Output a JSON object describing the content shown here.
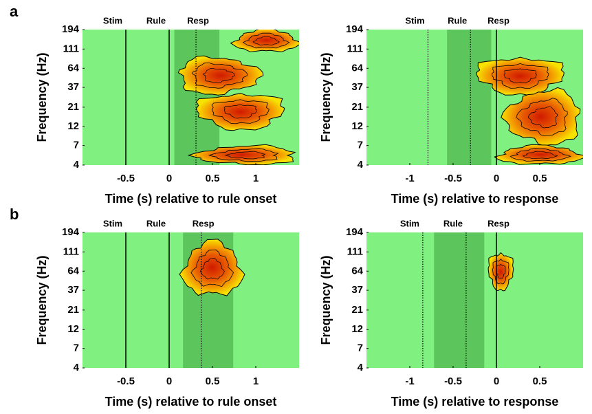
{
  "panel_labels": [
    "a",
    "b"
  ],
  "chart_data": [
    {
      "type": "heatmap",
      "x_label": "Time (s) relative to rule onset",
      "y_label": "Frequency (Hz)",
      "xlim": [
        -1,
        1.5
      ],
      "xticks": [
        -0.5,
        0,
        0.5,
        1
      ],
      "ylim": [
        4,
        194
      ],
      "yticks": [
        4,
        7,
        12,
        21,
        37,
        64,
        111,
        194
      ],
      "log_y": true,
      "background": "#80f080",
      "shade_color": "#5cc65c",
      "shaded": [
        0.06,
        0.58
      ],
      "events": [
        {
          "label": "Stim",
          "x": -0.5,
          "line": "solid"
        },
        {
          "label": "Rule",
          "x": 0,
          "line": "solid"
        },
        {
          "label": "Resp",
          "x": 0.31,
          "line": "dotted"
        }
      ],
      "clusters": [
        {
          "x": [
            0.74,
            1.5
          ],
          "y": [
            100,
            194
          ]
        },
        {
          "x": [
            0.08,
            1.05
          ],
          "y": [
            30,
            90
          ]
        },
        {
          "x": [
            0.3,
            1.35
          ],
          "y": [
            11,
            32
          ]
        },
        {
          "x": [
            0.3,
            1.5
          ],
          "y": [
            4,
            7
          ]
        }
      ]
    },
    {
      "type": "heatmap",
      "x_label": "Time (s) relative to response",
      "y_label": "Frequency (Hz)",
      "xlim": [
        -1.5,
        1
      ],
      "xticks": [
        -1,
        -0.5,
        0,
        0.5
      ],
      "ylim": [
        4,
        194
      ],
      "yticks": [
        4,
        7,
        12,
        21,
        37,
        64,
        111,
        194
      ],
      "log_y": true,
      "background": "#80f080",
      "shade_color": "#5cc65c",
      "shaded": [
        -0.57,
        -0.06
      ],
      "events": [
        {
          "label": "Stim",
          "x": -0.79,
          "line": "dotted"
        },
        {
          "label": "Rule",
          "x": -0.3,
          "line": "dotted"
        },
        {
          "label": "Resp",
          "x": 0,
          "line": "solid"
        }
      ],
      "clusters": [
        {
          "x": [
            -0.25,
            0.8
          ],
          "y": [
            30,
            90
          ]
        },
        {
          "x": [
            0.1,
            1
          ],
          "y": [
            7,
            35
          ]
        },
        {
          "x": [
            0,
            1
          ],
          "y": [
            4,
            7
          ]
        }
      ]
    },
    {
      "type": "heatmap",
      "x_label": "Time (s) relative to rule onset",
      "y_label": "Frequency (Hz)",
      "xlim": [
        -1,
        1.5
      ],
      "xticks": [
        -0.5,
        0,
        0.5,
        1
      ],
      "ylim": [
        4,
        194
      ],
      "yticks": [
        4,
        7,
        12,
        21,
        37,
        64,
        111,
        194
      ],
      "log_y": true,
      "background": "#80f080",
      "shade_color": "#5cc65c",
      "shaded": [
        0.16,
        0.74
      ],
      "events": [
        {
          "label": "Stim",
          "x": -0.5,
          "line": "solid"
        },
        {
          "label": "Rule",
          "x": 0,
          "line": "solid"
        },
        {
          "label": "Resp",
          "x": 0.37,
          "line": "dotted"
        }
      ],
      "clusters": [
        {
          "x": [
            0.15,
            0.85
          ],
          "y": [
            30,
            150
          ]
        }
      ]
    },
    {
      "type": "heatmap",
      "x_label": "Time (s) relative to response",
      "y_label": "Frequency (Hz)",
      "xlim": [
        -1.5,
        1
      ],
      "xticks": [
        -1,
        -0.5,
        0,
        0.5
      ],
      "ylim": [
        4,
        194
      ],
      "yticks": [
        4,
        7,
        12,
        21,
        37,
        64,
        111,
        194
      ],
      "log_y": true,
      "background": "#80f080",
      "shade_color": "#5cc65c",
      "shaded": [
        -0.72,
        -0.14
      ],
      "events": [
        {
          "label": "Stim",
          "x": -0.85,
          "line": "dotted"
        },
        {
          "label": "Rule",
          "x": -0.35,
          "line": "dotted"
        },
        {
          "label": "Resp",
          "x": 0,
          "line": "solid"
        }
      ],
      "clusters": [
        {
          "x": [
            -0.1,
            0.2
          ],
          "y": [
            37,
            111
          ]
        }
      ]
    }
  ]
}
